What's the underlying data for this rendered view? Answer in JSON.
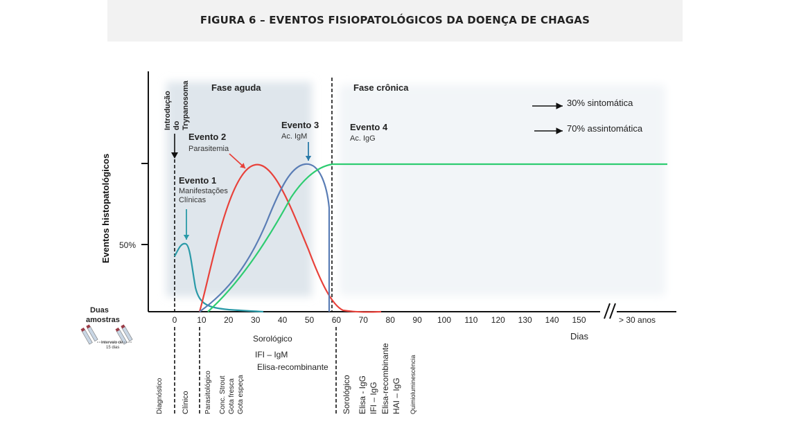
{
  "header": {
    "title": "FIGURA 6 – EVENTOS FISIOPATOLÓGICOS DA DOENÇA DE CHAGAS"
  },
  "phases": {
    "acute": "Fase aguda",
    "chronic": "Fase crônica"
  },
  "outcomes": [
    {
      "label": "30% sintomática"
    },
    {
      "label": "70% assintomática"
    }
  ],
  "introduction_label": [
    "Introdução",
    "do",
    "Trypanosoma"
  ],
  "events": [
    {
      "title": "Evento 1",
      "subtitle": [
        "Manifestações",
        "Clínicas"
      ]
    },
    {
      "title": "Evento 2",
      "subtitle": [
        "Parasitemia"
      ]
    },
    {
      "title": "Evento 3",
      "subtitle": [
        "Ac. IgM"
      ]
    },
    {
      "title": "Evento 4",
      "subtitle": [
        "Ac. IgG"
      ]
    }
  ],
  "y_axis": {
    "label": "Eventos histopatológicos",
    "tick_50": "50%"
  },
  "x_axis": {
    "label": "Dias",
    "ticks": [
      "0",
      "10",
      "20",
      "30",
      "40",
      "50",
      "60",
      "70",
      "80",
      "90",
      "100",
      "110",
      "120",
      "130",
      "140",
      "150"
    ],
    "break_label": "> 30 anos"
  },
  "samples": {
    "label": [
      "Duas",
      "amostras"
    ],
    "interval": [
      "Intervalo de",
      "15 dias"
    ]
  },
  "serology_acute": {
    "title": "Sorológico",
    "lines": [
      "IFI – IgM",
      "Elisa-recombinante"
    ]
  },
  "diagnosis_columns": [
    {
      "lines": [
        "Diagnóstico"
      ]
    },
    {
      "lines": [
        "Clínico"
      ]
    },
    {
      "lines": [
        "Parasitológico"
      ]
    },
    {
      "lines": [
        "Conc. Strout",
        "Gota fresca",
        "Gota espeça"
      ]
    },
    {
      "lines": [
        "Sorológico"
      ]
    },
    {
      "lines": [
        "Elisa - IgG",
        "IFI – IgG",
        "Elisa-recombinante",
        "HAI – IgG"
      ]
    },
    {
      "lines": [
        "Quimioluminescência"
      ]
    }
  ],
  "colors": {
    "clinical": "#2a9aa8",
    "parasitemia": "#e8413a",
    "igm": "#5a7db5",
    "igg": "#2ecc71",
    "acute_bg": "#dfe6ec",
    "chronic_bg": "#f2f5f8",
    "arrow_event1": "#2a9aa8",
    "arrow_event2": "#e8413a",
    "arrow_event3": "#2a7aa8"
  }
}
